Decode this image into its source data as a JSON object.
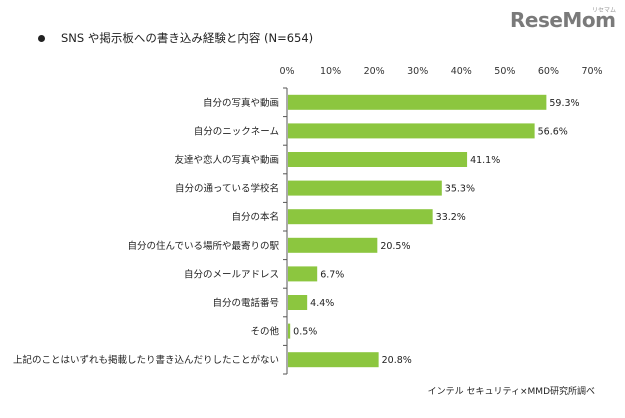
{
  "logo": {
    "text": "ReseMom",
    "subtext": "リセマム"
  },
  "title": "SNS や掲示板への書き込み経験と内容 (N=654)",
  "source": "インテル セキュリティ×MMD研究所調べ",
  "colors": {
    "bar": "#8cc63f",
    "axis": "#555555"
  },
  "chart_data": {
    "type": "bar",
    "orientation": "horizontal",
    "title": "SNS や掲示板への書き込み経験と内容 (N=654)",
    "categories": [
      "自分の写真や動画",
      "自分のニックネーム",
      "友達や恋人の写真や動画",
      "自分の通っている学校名",
      "自分の本名",
      "自分の住んでいる場所や最寄りの駅",
      "自分のメールアドレス",
      "自分の電話番号",
      "その他",
      "上記のことはいずれも掲載したり書き込んだりしたことがない"
    ],
    "values": [
      59.3,
      56.6,
      41.1,
      35.3,
      33.2,
      20.5,
      6.7,
      4.4,
      0.5,
      20.8
    ],
    "value_labels": [
      "59.3%",
      "56.6%",
      "41.1%",
      "35.3%",
      "33.2%",
      "20.5%",
      "6.7%",
      "4.4%",
      "0.5%",
      "20.8%"
    ],
    "xlim": [
      0,
      70
    ],
    "ticks": [
      0,
      10,
      20,
      30,
      40,
      50,
      60,
      70
    ],
    "tick_labels": [
      "0%",
      "10%",
      "20%",
      "30%",
      "40%",
      "50%",
      "60%",
      "70%"
    ],
    "grid": false
  }
}
